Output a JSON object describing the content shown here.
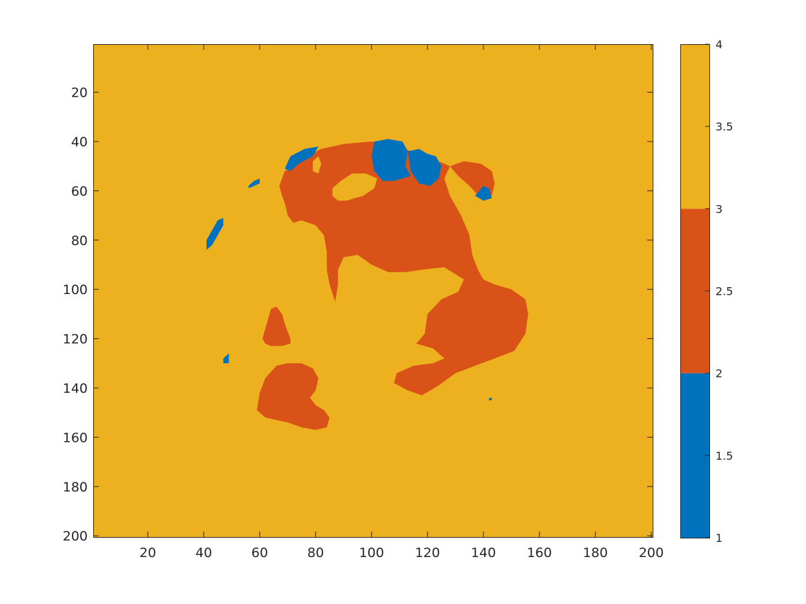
{
  "chart_data": {
    "type": "heatmap",
    "title": "",
    "xlabel": "",
    "ylabel": "",
    "xlim": [
      0.5,
      200.5
    ],
    "ylim": [
      0.5,
      200.5
    ],
    "y_reversed": true,
    "x_ticks": [
      20,
      40,
      60,
      80,
      100,
      120,
      140,
      160,
      180,
      200
    ],
    "y_ticks": [
      20,
      40,
      60,
      80,
      100,
      120,
      140,
      160,
      180,
      200
    ],
    "background_value": 4,
    "colorbar": {
      "range": [
        1,
        4
      ],
      "ticks": [
        1,
        1.5,
        2,
        2.5,
        3,
        3.5,
        4
      ],
      "bands": [
        {
          "from": 1,
          "to": 2,
          "color": "#0072BD"
        },
        {
          "from": 2,
          "to": 3,
          "color": "#D95319"
        },
        {
          "from": 3,
          "to": 4,
          "color": "#EDB120"
        }
      ]
    },
    "colors": {
      "1": "#0072BD",
      "2": "#D95319",
      "4": "#EDB120"
    },
    "regions": [
      {
        "value": 2,
        "points": [
          [
            67,
            58
          ],
          [
            69,
            52
          ],
          [
            75,
            47
          ],
          [
            82,
            43
          ],
          [
            90,
            41
          ],
          [
            100,
            40
          ],
          [
            106,
            41
          ],
          [
            112,
            43
          ],
          [
            118,
            46
          ],
          [
            124,
            48
          ],
          [
            128,
            50
          ],
          [
            126,
            55
          ],
          [
            128,
            62
          ],
          [
            132,
            70
          ],
          [
            135,
            78
          ],
          [
            136,
            86
          ],
          [
            138,
            92
          ],
          [
            140,
            96
          ],
          [
            144,
            98
          ],
          [
            150,
            100
          ],
          [
            155,
            104
          ],
          [
            156,
            110
          ],
          [
            155,
            118
          ],
          [
            151,
            125
          ],
          [
            144,
            128
          ],
          [
            137,
            131
          ],
          [
            130,
            134
          ],
          [
            124,
            139
          ],
          [
            118,
            143
          ],
          [
            113,
            141
          ],
          [
            108,
            138
          ],
          [
            109,
            134
          ],
          [
            115,
            131
          ],
          [
            122,
            130
          ],
          [
            126,
            128
          ],
          [
            122,
            124
          ],
          [
            116,
            122
          ],
          [
            119,
            118
          ],
          [
            120,
            110
          ],
          [
            125,
            104
          ],
          [
            131,
            101
          ],
          [
            133,
            96
          ],
          [
            126,
            91
          ],
          [
            118,
            92
          ],
          [
            112,
            93
          ],
          [
            106,
            93
          ],
          [
            100,
            90
          ],
          [
            95,
            86
          ],
          [
            90,
            87
          ],
          [
            88,
            92
          ],
          [
            88,
            98
          ],
          [
            87,
            105
          ],
          [
            85,
            98
          ],
          [
            84,
            92
          ],
          [
            84,
            85
          ],
          [
            83,
            78
          ],
          [
            80,
            74
          ],
          [
            75,
            72
          ],
          [
            72,
            73
          ],
          [
            70,
            70
          ],
          [
            69,
            65
          ],
          [
            68,
            62
          ]
        ]
      },
      {
        "value": 2,
        "points": [
          [
            128,
            50
          ],
          [
            133,
            48
          ],
          [
            139,
            49
          ],
          [
            143,
            52
          ],
          [
            144,
            57
          ],
          [
            143,
            62
          ],
          [
            139,
            63
          ],
          [
            135,
            58
          ],
          [
            131,
            54
          ]
        ]
      },
      {
        "value": 2,
        "points": [
          [
            63,
            112
          ],
          [
            64,
            108
          ],
          [
            66,
            107
          ],
          [
            68,
            110
          ],
          [
            69,
            114
          ],
          [
            71,
            120
          ],
          [
            71,
            122
          ],
          [
            68,
            123
          ],
          [
            64,
            123
          ],
          [
            62,
            122
          ],
          [
            61,
            120
          ],
          [
            62,
            116
          ]
        ]
      },
      {
        "value": 2,
        "points": [
          [
            59,
            149
          ],
          [
            60,
            142
          ],
          [
            62,
            136
          ],
          [
            66,
            131
          ],
          [
            70,
            130
          ],
          [
            75,
            130
          ],
          [
            79,
            132
          ],
          [
            81,
            136
          ],
          [
            80,
            141
          ],
          [
            78,
            144
          ],
          [
            80,
            147
          ],
          [
            83,
            149
          ],
          [
            85,
            152
          ],
          [
            84,
            156
          ],
          [
            80,
            157
          ],
          [
            75,
            156
          ],
          [
            70,
            154
          ],
          [
            66,
            153
          ],
          [
            62,
            152
          ]
        ]
      },
      {
        "value": 4,
        "points": [
          [
            86,
            59
          ],
          [
            89,
            56
          ],
          [
            93,
            53
          ],
          [
            98,
            53
          ],
          [
            102,
            55
          ],
          [
            101,
            59
          ],
          [
            97,
            62
          ],
          [
            91,
            64
          ],
          [
            88,
            64
          ],
          [
            86,
            62
          ]
        ]
      },
      {
        "value": 4,
        "points": [
          [
            79,
            48
          ],
          [
            81,
            46
          ],
          [
            82,
            49
          ],
          [
            81,
            53
          ],
          [
            79,
            52
          ]
        ]
      },
      {
        "value": 1,
        "points": [
          [
            101,
            40
          ],
          [
            106,
            39
          ],
          [
            111,
            40
          ],
          [
            113,
            44
          ],
          [
            112,
            50
          ],
          [
            114,
            54
          ],
          [
            108,
            56
          ],
          [
            104,
            56
          ],
          [
            101,
            52
          ],
          [
            100,
            46
          ]
        ]
      },
      {
        "value": 1,
        "points": [
          [
            69,
            51
          ],
          [
            71,
            46
          ],
          [
            76,
            43
          ],
          [
            81,
            42
          ],
          [
            79,
            46
          ],
          [
            74,
            49
          ],
          [
            71,
            52
          ]
        ]
      },
      {
        "value": 1,
        "points": [
          [
            56,
            58
          ],
          [
            58,
            56
          ],
          [
            60,
            55
          ],
          [
            60,
            57
          ],
          [
            58,
            58
          ],
          [
            56,
            59
          ]
        ]
      },
      {
        "value": 1,
        "points": [
          [
            41,
            84
          ],
          [
            41,
            80
          ],
          [
            43,
            76
          ],
          [
            45,
            72
          ],
          [
            47,
            71
          ],
          [
            47,
            74
          ],
          [
            45,
            78
          ],
          [
            43,
            82
          ]
        ]
      },
      {
        "value": 1,
        "points": [
          [
            47,
            128
          ],
          [
            49,
            126
          ],
          [
            49,
            130
          ],
          [
            47,
            130
          ]
        ]
      },
      {
        "value": 1,
        "points": [
          [
            137,
            62
          ],
          [
            140,
            58
          ],
          [
            142,
            59
          ],
          [
            143,
            63
          ],
          [
            140,
            64
          ]
        ]
      },
      {
        "value": 1,
        "points": [
          [
            142,
            144
          ],
          [
            143,
            144
          ],
          [
            143,
            145
          ],
          [
            142,
            145
          ]
        ]
      },
      {
        "value": 1,
        "points": [
          [
            113,
            44
          ],
          [
            117,
            43
          ],
          [
            120,
            45
          ],
          [
            123,
            46
          ],
          [
            125,
            50
          ],
          [
            124,
            55
          ],
          [
            121,
            58
          ],
          [
            117,
            57
          ],
          [
            114,
            52
          ]
        ]
      }
    ]
  }
}
